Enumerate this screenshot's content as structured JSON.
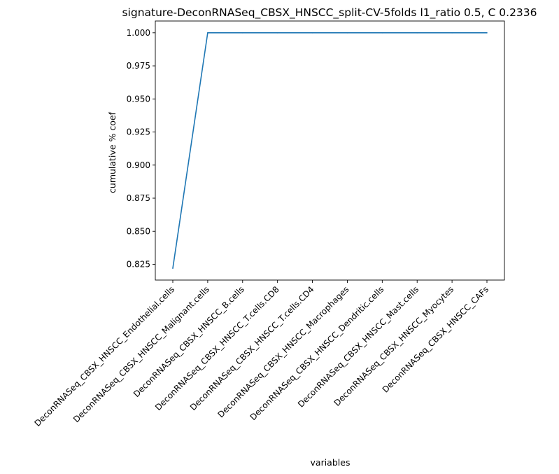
{
  "chart_data": {
    "type": "line",
    "title": "signature-DeconRNASeq_CBSX_HNSCC_split-CV-5folds l1_ratio 0.5, C 0.2336",
    "xlabel": "variables",
    "ylabel": "cumulative % coef",
    "categories": [
      "DeconRNASeq_CBSX_HNSCC_Endothelial.cells",
      "DeconRNASeq_CBSX_HNSCC_Malignant.cells",
      "DeconRNASeq_CBSX_HNSCC_B.cells",
      "DeconRNASeq_CBSX_HNSCC_T.cells.CD8",
      "DeconRNASeq_CBSX_HNSCC_T.cells.CD4",
      "DeconRNASeq_CBSX_HNSCC_Macrophages",
      "DeconRNASeq_CBSX_HNSCC_Dendritic.cells",
      "DeconRNASeq_CBSX_HNSCC_Mast.cells",
      "DeconRNASeq_CBSX_HNSCC_Myocytes",
      "DeconRNASeq_CBSX_HNSCC_CAFs"
    ],
    "series": [
      {
        "values": [
          0.822,
          1.0,
          1.0,
          1.0,
          1.0,
          1.0,
          1.0,
          1.0,
          1.0,
          1.0
        ],
        "color": "#1f77b4"
      }
    ],
    "ylim": [
      0.8131,
      1.0089
    ],
    "yticks": [
      "0.825",
      "0.850",
      "0.875",
      "0.900",
      "0.925",
      "0.950",
      "0.975",
      "1.000"
    ],
    "grid": false,
    "legend": "none"
  }
}
